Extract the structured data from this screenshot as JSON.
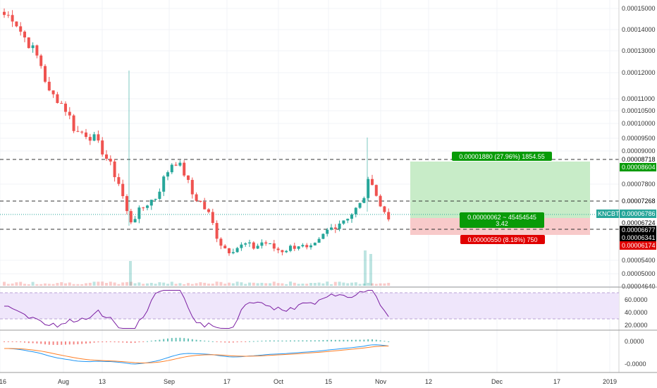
{
  "symbol": "KNCBTC",
  "colors": {
    "bull": "#26a69a",
    "bear": "#ef5350",
    "profit_zone": "#c8ecc8",
    "loss_zone": "#f8caca",
    "rsi_line": "#7b1fa2",
    "rsi_band": "#efe6fb",
    "macd_line": "#2196f3",
    "signal_line": "#ff7f27",
    "price_line": "#26a69a",
    "target_green": "#089b08",
    "stop_red": "#e00000"
  },
  "price_axis": {
    "ticks": [
      "0.00015000",
      "0.00014000",
      "0.00013000",
      "0.00012000",
      "0.00011000",
      "0.00010500",
      "0.00010000",
      "0.00009500",
      "0.00009000",
      "0.00007800",
      "0.00005400",
      "0.00005000",
      "0.00004640"
    ],
    "badges": {
      "resistance_high": "0.00008718",
      "target": "0.00008604",
      "resistance_mid": "0.00007268",
      "current": "0.00006786",
      "entry": "0.00006724",
      "support": "0.00006677",
      "level_low": "0.00006341",
      "stop": "0.00006174"
    }
  },
  "rsi_axis": {
    "ticks": [
      "60.0000",
      "40.0000",
      "20.0000"
    ]
  },
  "macd_axis": {
    "ticks": [
      "0.0000",
      "-0.0000"
    ]
  },
  "time_axis": {
    "ticks": [
      "16",
      "Aug",
      "13",
      "Sep",
      "17",
      "Oct",
      "15",
      "Nov",
      "12",
      "Dec",
      "17",
      "2019"
    ]
  },
  "position": {
    "target_label": "0.00001880 (27.96%) 1854.55",
    "entry_label_line1": "0.00000062 ~ 45454545",
    "entry_label_line2": "3.42",
    "stop_label": "0.00000550 (8.18%) 750"
  },
  "chart_data": {
    "type": "candlestick",
    "symbol": "KNCBTC",
    "horizontal_levels": [
      "0.00008718",
      "0.00007268",
      "0.00006677"
    ],
    "close_path": [
      0.000147,
      0.000146,
      0.000138,
      0.000132,
      0.000125,
      0.000112,
      0.00011,
      0.000105,
      9.7e-05,
      9.7e-05,
      9.5e-05,
      9e-05,
      8.4e-05,
      7.7e-05,
      6.6e-05,
      6.9e-05,
      7.2e-05,
      7.4e-05,
      8.1e-05,
      8.7e-05,
      8.3e-05,
      7.5e-05,
      7.2e-05,
      6.8e-05,
      6e-05,
      5.7e-05,
      5.8e-05,
      5.9e-05,
      5.8e-05,
      6e-05,
      5.8e-05,
      5.7e-05,
      5.8e-05,
      5.9e-05,
      5.7e-05,
      5.9e-05,
      6.3e-05,
      6.5e-05,
      6.7e-05,
      6.9e-05,
      7.2e-05,
      8.1e-05,
      7.1e-05,
      6.8e-05
    ]
  }
}
